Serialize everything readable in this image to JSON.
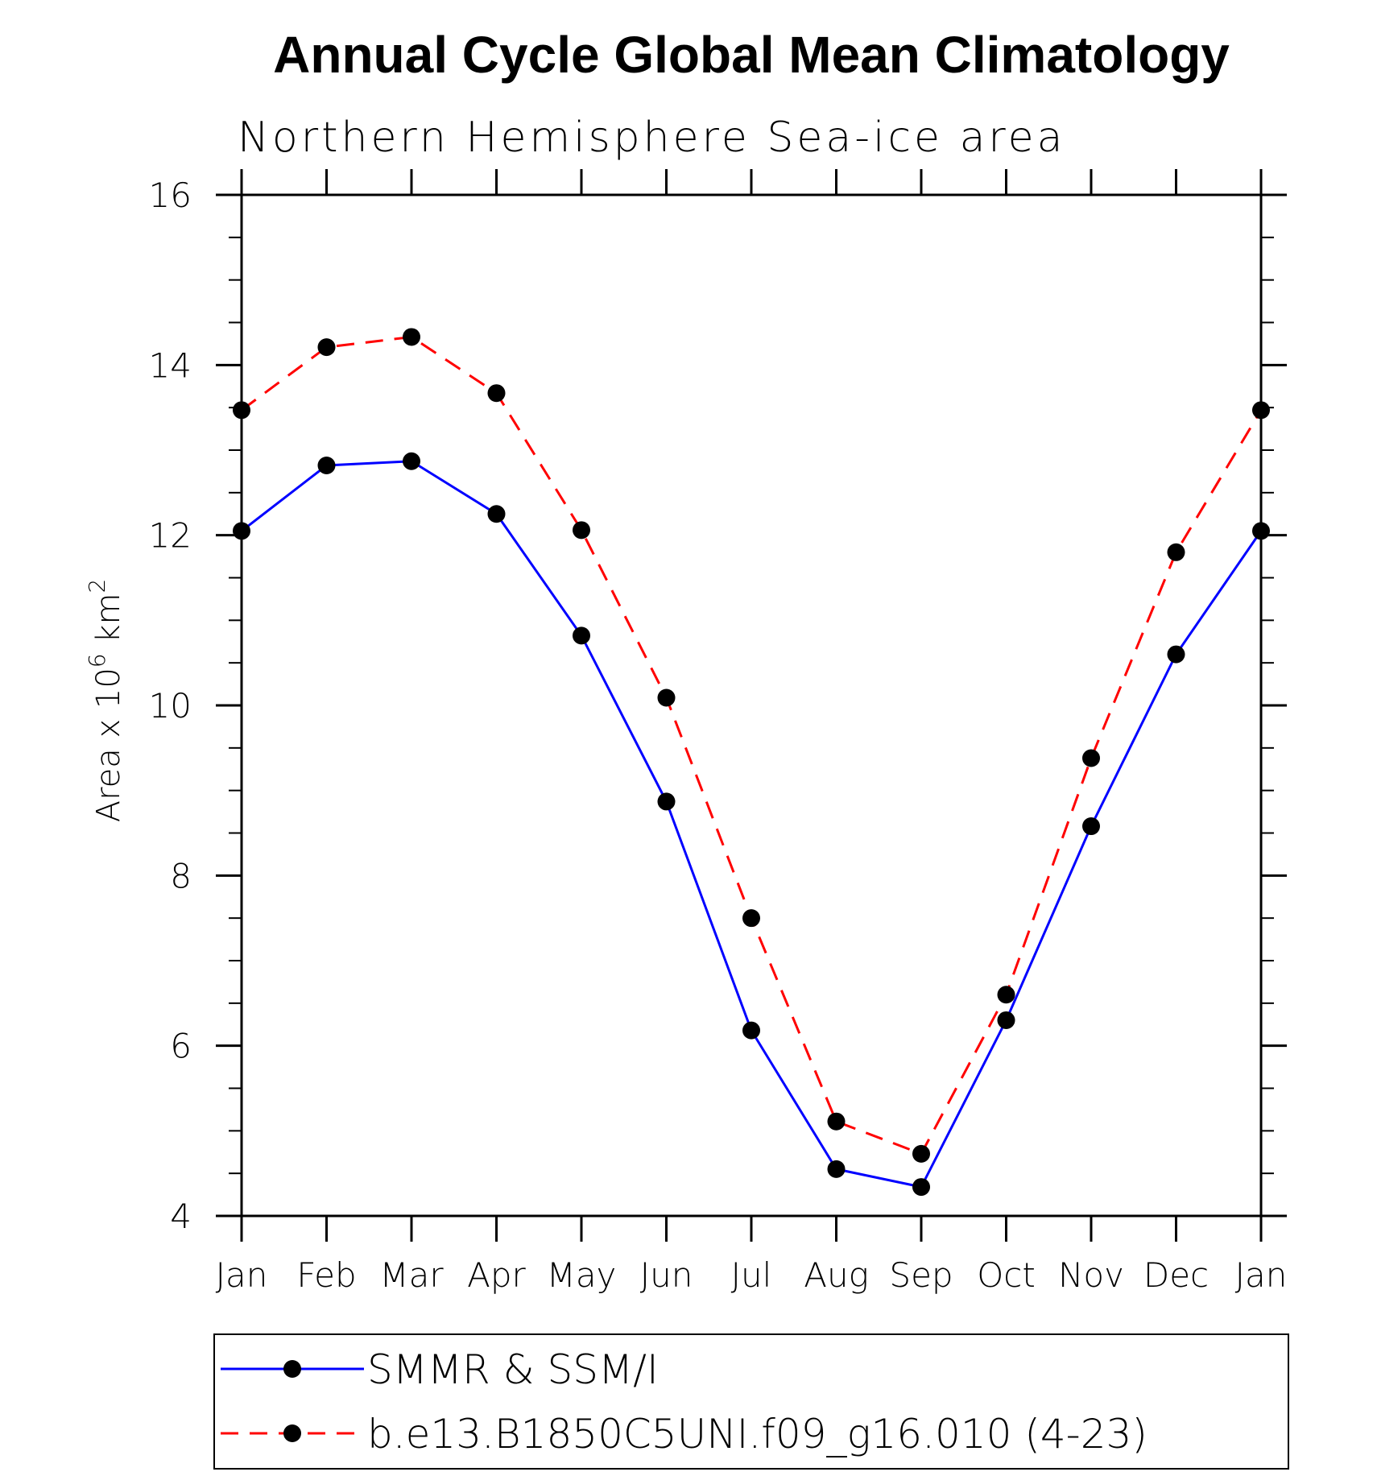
{
  "chart_data": {
    "type": "line",
    "title": "Annual Cycle Global Mean Climatology",
    "subtitle": "Northern Hemisphere Sea-ice area",
    "xlabel": "",
    "ylabel": "Area x 10",
    "ylabel_exp": "6",
    "ylabel_unit": " km",
    "ylabel_unit_exp": "2",
    "categories": [
      "Jan",
      "Feb",
      "Mar",
      "Apr",
      "May",
      "Jun",
      "Jul",
      "Aug",
      "Sep",
      "Oct",
      "Nov",
      "Dec",
      "Jan"
    ],
    "ylim": [
      4,
      16
    ],
    "yticks": [
      4,
      6,
      8,
      10,
      12,
      14,
      16
    ],
    "legend_position": "bottom",
    "series": [
      {
        "name": "SMMR & SSM/I",
        "color": "#0000ff",
        "dash": "solid",
        "marker": "filled-circle",
        "values": [
          12.05,
          12.82,
          12.87,
          12.25,
          10.82,
          8.87,
          6.18,
          4.55,
          4.34,
          6.3,
          8.58,
          10.6,
          12.05
        ]
      },
      {
        "name": "b.e13.B1850C5UNI.f09_g16.010 (4-23)",
        "color": "#ff0000",
        "dash": "dashed",
        "marker": "filled-circle",
        "values": [
          13.47,
          14.21,
          14.33,
          13.67,
          12.06,
          10.09,
          7.5,
          5.11,
          4.73,
          6.6,
          9.38,
          11.8,
          13.47
        ]
      }
    ]
  }
}
